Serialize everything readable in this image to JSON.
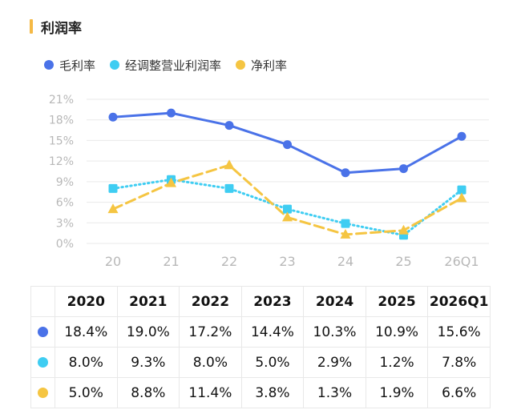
{
  "title": "利润率",
  "colors": {
    "accent_bar": "#f5b945",
    "grid": "#e9e9e9",
    "tick": "#b8b8b8"
  },
  "chart_data": {
    "type": "line",
    "categories": [
      "20",
      "21",
      "22",
      "23",
      "24",
      "25",
      "26Q1"
    ],
    "yticks": [
      "0%",
      "3%",
      "6%",
      "9%",
      "12%",
      "15%",
      "18%",
      "21%"
    ],
    "ylim": [
      0,
      21
    ],
    "grid": true,
    "legend_position": "top-left",
    "series": [
      {
        "name": "毛利率",
        "color": "#4a72e8",
        "style": "solid",
        "marker": "circle",
        "values": [
          18.4,
          19.0,
          17.2,
          14.4,
          10.3,
          10.9,
          15.6
        ]
      },
      {
        "name": "经调整营业利润率",
        "color": "#3fcdf2",
        "style": "dotted",
        "marker": "square",
        "values": [
          8.0,
          9.3,
          8.0,
          5.0,
          2.9,
          1.2,
          7.8
        ]
      },
      {
        "name": "净利率",
        "color": "#f5c542",
        "style": "dashed",
        "marker": "triangle",
        "values": [
          5.0,
          8.8,
          11.4,
          3.8,
          1.3,
          1.9,
          6.6
        ]
      }
    ]
  },
  "table": {
    "headers": [
      "2020",
      "2021",
      "2022",
      "2023",
      "2024",
      "2025",
      "2026Q1"
    ],
    "rows": [
      {
        "color": "#4a72e8",
        "cells": [
          "18.4%",
          "19.0%",
          "17.2%",
          "14.4%",
          "10.3%",
          "10.9%",
          "15.6%"
        ]
      },
      {
        "color": "#3fcdf2",
        "cells": [
          "8.0%",
          "9.3%",
          "8.0%",
          "5.0%",
          "2.9%",
          "1.2%",
          "7.8%"
        ]
      },
      {
        "color": "#f5c542",
        "cells": [
          "5.0%",
          "8.8%",
          "11.4%",
          "3.8%",
          "1.3%",
          "1.9%",
          "6.6%"
        ]
      }
    ]
  }
}
